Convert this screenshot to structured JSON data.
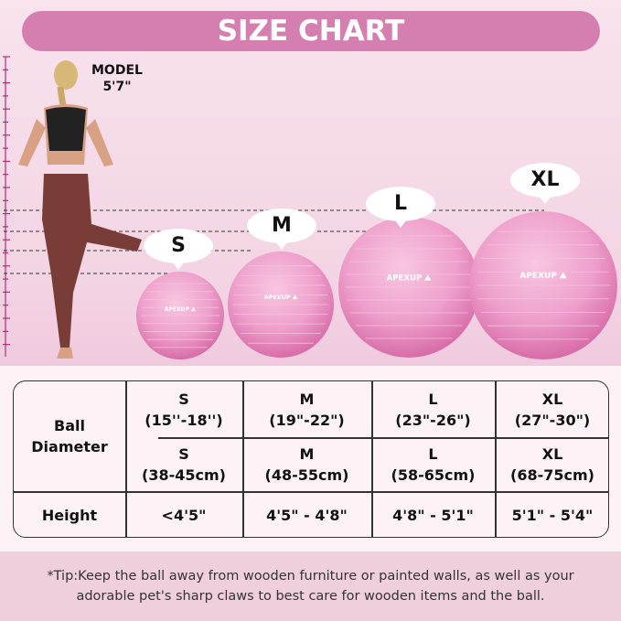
{
  "header": {
    "title": "SIZE CHART"
  },
  "model": {
    "label": "MODEL",
    "height": "5'7\""
  },
  "balls": [
    {
      "size": "S",
      "brand": "APEXUP"
    },
    {
      "size": "M",
      "brand": "APEXUP"
    },
    {
      "size": "L",
      "brand": "APEXUP"
    },
    {
      "size": "XL",
      "brand": "APEXUP"
    }
  ],
  "colors": {
    "header": "#d57fb0",
    "ball": "#ee9fcb",
    "tip_band": "#f0cfdc"
  },
  "table": {
    "row_headers": {
      "diameter": "Ball Diameter",
      "height": "Height"
    },
    "inches": [
      {
        "size": "S",
        "value": "(15''-18'')"
      },
      {
        "size": "M",
        "value": "(19\"-22\")"
      },
      {
        "size": "L",
        "value": "(23\"-26\")"
      },
      {
        "size": "XL",
        "value": "(27\"-30\")"
      }
    ],
    "cm": [
      {
        "size": "S",
        "value": "(38-45cm)"
      },
      {
        "size": "M",
        "value": "(48-55cm)"
      },
      {
        "size": "L",
        "value": "(58-65cm)"
      },
      {
        "size": "XL",
        "value": "(68-75cm)"
      }
    ],
    "heights": [
      "<4'5\"",
      "4'5\" - 4'8\"",
      "4'8\" - 5'1\"",
      "5'1\" - 5'4\""
    ]
  },
  "tip": {
    "line1": "*Tip:Keep the ball away from wooden furniture or painted walls, as well as your",
    "line2": "adorable pet's sharp claws to best care for wooden items and the ball."
  }
}
